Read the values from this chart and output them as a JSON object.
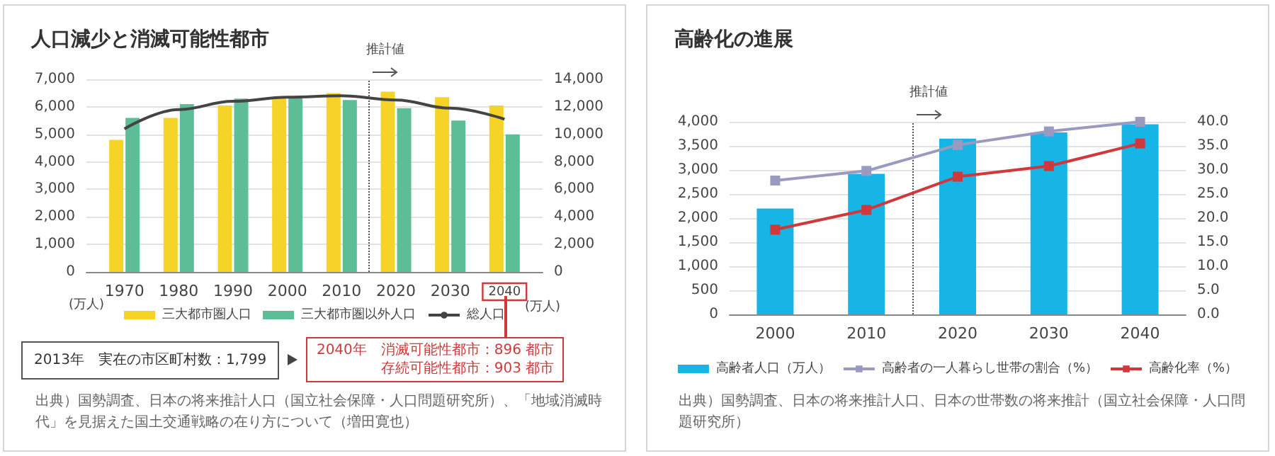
{
  "chart_data": [
    {
      "type": "bar",
      "title": "人口減少と消滅可能性都市",
      "ylabel": "(万人)",
      "y2label": "(万人)",
      "x": [
        1970,
        1980,
        1990,
        2000,
        2010,
        2020,
        2030,
        2040
      ],
      "series": [
        {
          "name": "三大都市圏人口",
          "color": "#f5d327",
          "values": [
            4800,
            5600,
            6050,
            6350,
            6500,
            6550,
            6350,
            6050
          ]
        },
        {
          "name": "三大都市圏以外人口",
          "color": "#5dbd96",
          "values": [
            5600,
            6100,
            6300,
            6350,
            6250,
            5950,
            5500,
            5000
          ]
        },
        {
          "name": "総人口",
          "type": "line",
          "axis": "y2",
          "color": "#444444",
          "values": [
            10400,
            11800,
            12400,
            12700,
            12800,
            12500,
            11900,
            11100
          ]
        }
      ],
      "xlim": [
        1963,
        2047
      ],
      "xticks": [
        1970,
        1980,
        1990,
        2000,
        2010,
        2020,
        2030,
        2040
      ],
      "ylim": [
        0,
        7000
      ],
      "yticks": [
        {
          "value": 0,
          "label": "0"
        },
        {
          "value": 1000,
          "label": "1,000"
        },
        {
          "value": 2000,
          "label": "2,000"
        },
        {
          "value": 3000,
          "label": "3,000"
        },
        {
          "value": 4000,
          "label": "4,000"
        },
        {
          "value": 5000,
          "label": "5,000"
        },
        {
          "value": 6000,
          "label": "6,000"
        },
        {
          "value": 7000,
          "label": "7,000"
        }
      ],
      "y2lim": [
        0,
        14000
      ],
      "y2ticks": [
        {
          "value": 0,
          "label": "0"
        },
        {
          "value": 2000,
          "label": "2,000"
        },
        {
          "value": 4000,
          "label": "4,000"
        },
        {
          "value": 6000,
          "label": "6,000"
        },
        {
          "value": 8000,
          "label": "8,000"
        },
        {
          "value": 10000,
          "label": "10,000"
        },
        {
          "value": 12000,
          "label": "12,000"
        },
        {
          "value": 14000,
          "label": "14,000"
        }
      ],
      "ref_lines": [
        {
          "axis": "x",
          "value": 2015,
          "label": "推計値",
          "color": "#555555",
          "line_style": "dotted"
        }
      ],
      "annotations": [
        "2013年　実在の市区町村数：1,799",
        "2040年　消滅可能性都市：896 都市",
        "存続可能性都市：903 都市",
        "出典）国勢調査、日本の将来推計人口（国立社会保障・人口問題研究所）、「地域消滅時代」を見据えた国土交通戦略の在り方について（増田寛也）"
      ],
      "grid": "y",
      "legend": "bottom",
      "marker": "none"
    },
    {
      "type": "bar",
      "title": "高齢化の進展",
      "x": [
        2000,
        2010,
        2020,
        2030,
        2040
      ],
      "series": [
        {
          "name": "高齢者人口（万人）",
          "color": "#16b5e6",
          "values": [
            2200,
            2920,
            3650,
            3780,
            3950
          ]
        },
        {
          "name": "高齢者の一人暮らし世帯の割合（%）",
          "type": "line",
          "axis": "y2",
          "color": "#9a9ac0",
          "values": [
            27.8,
            29.8,
            35.2,
            38.0,
            40.0
          ]
        },
        {
          "name": "高齢化率（%）",
          "type": "line",
          "axis": "y2",
          "color": "#d0393b",
          "values": [
            17.6,
            21.7,
            28.6,
            30.8,
            35.5
          ]
        }
      ],
      "xlim": [
        1995,
        2045
      ],
      "xticks": [
        2000,
        2010,
        2020,
        2030,
        2040
      ],
      "ylim": [
        0,
        4000
      ],
      "yticks": [
        {
          "value": 0,
          "label": "0"
        },
        500,
        {
          "value": 1000,
          "label": "1,000"
        },
        {
          "value": 1500,
          "label": "1,500"
        },
        {
          "value": 2000,
          "label": "2,000"
        },
        {
          "value": 2500,
          "label": "2,500"
        },
        {
          "value": 3000,
          "label": "3,000"
        },
        {
          "value": 3500,
          "label": "3,500"
        },
        {
          "value": 4000,
          "label": "4,000"
        }
      ],
      "y2lim": [
        0,
        40
      ],
      "y2ticks": [
        {
          "value": 0,
          "label": "0.0"
        },
        {
          "value": 5,
          "label": "5.0"
        },
        {
          "value": 10,
          "label": "10.0"
        },
        {
          "value": 15,
          "label": "15.0"
        },
        {
          "value": 20,
          "label": "20.0"
        },
        {
          "value": 25,
          "label": "25.0"
        },
        {
          "value": 30,
          "label": "30.0"
        },
        {
          "value": 35,
          "label": "35.0"
        },
        {
          "value": 40,
          "label": "40.0"
        }
      ],
      "ref_lines": [
        {
          "axis": "x",
          "value": 2015,
          "label": "推計値",
          "color": "#555555",
          "line_style": "dotted"
        }
      ],
      "annotations": [
        "出典）国勢調査、日本の将来推計人口、日本の世帯数の将来推計（国立社会保障・人口問題研究所）"
      ],
      "grid": "y",
      "legend": "bottom",
      "marker": "square"
    }
  ]
}
